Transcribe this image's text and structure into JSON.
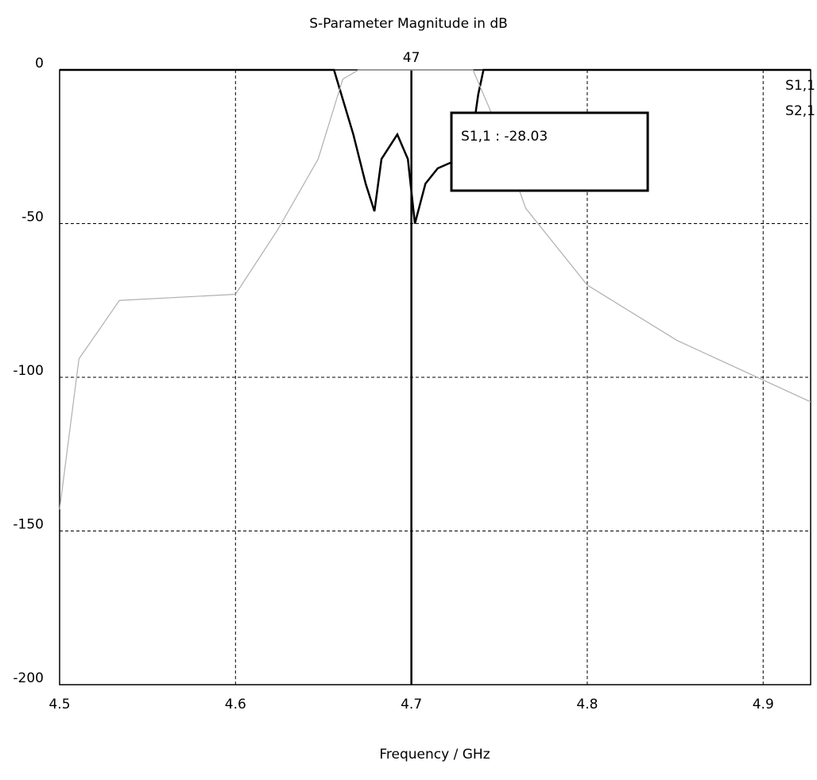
{
  "chart_data": {
    "type": "line",
    "title": "S-Parameter Magnitude in dB",
    "x_label": "Frequency / GHz",
    "xlim": [
      4.5,
      4.927
    ],
    "xticks": [
      4.5,
      4.6,
      4.7,
      4.8,
      4.9
    ],
    "ylim": [
      -200,
      0
    ],
    "yticks": [
      0,
      -50,
      -100,
      -150,
      -200
    ],
    "grid": true,
    "marker": {
      "x": 4.7,
      "label": "47"
    },
    "annotation": "S1,1 : -28.03",
    "series": [
      {
        "name": "S1,1",
        "color": "#000000",
        "x": [
          4.5,
          4.656,
          4.667,
          4.674,
          4.679,
          4.683,
          4.692,
          4.698,
          4.702,
          4.708,
          4.715,
          4.727,
          4.734,
          4.738,
          4.741,
          4.927
        ],
        "values": [
          0,
          0,
          -21,
          -37,
          -46,
          -29,
          -21,
          -29,
          -50,
          -37,
          -32,
          -29,
          -24,
          -8,
          0,
          0
        ]
      },
      {
        "name": "S2,1",
        "color": "#b0b0b0",
        "x": [
          4.5,
          4.511,
          4.534,
          4.6,
          4.624,
          4.647,
          4.661,
          4.67,
          4.735,
          4.747,
          4.765,
          4.8,
          4.851,
          4.927
        ],
        "values": [
          -143,
          -94,
          -75,
          -73,
          -52,
          -29,
          -3,
          0,
          0,
          -16,
          -45,
          -70,
          -88,
          -108
        ]
      }
    ]
  }
}
